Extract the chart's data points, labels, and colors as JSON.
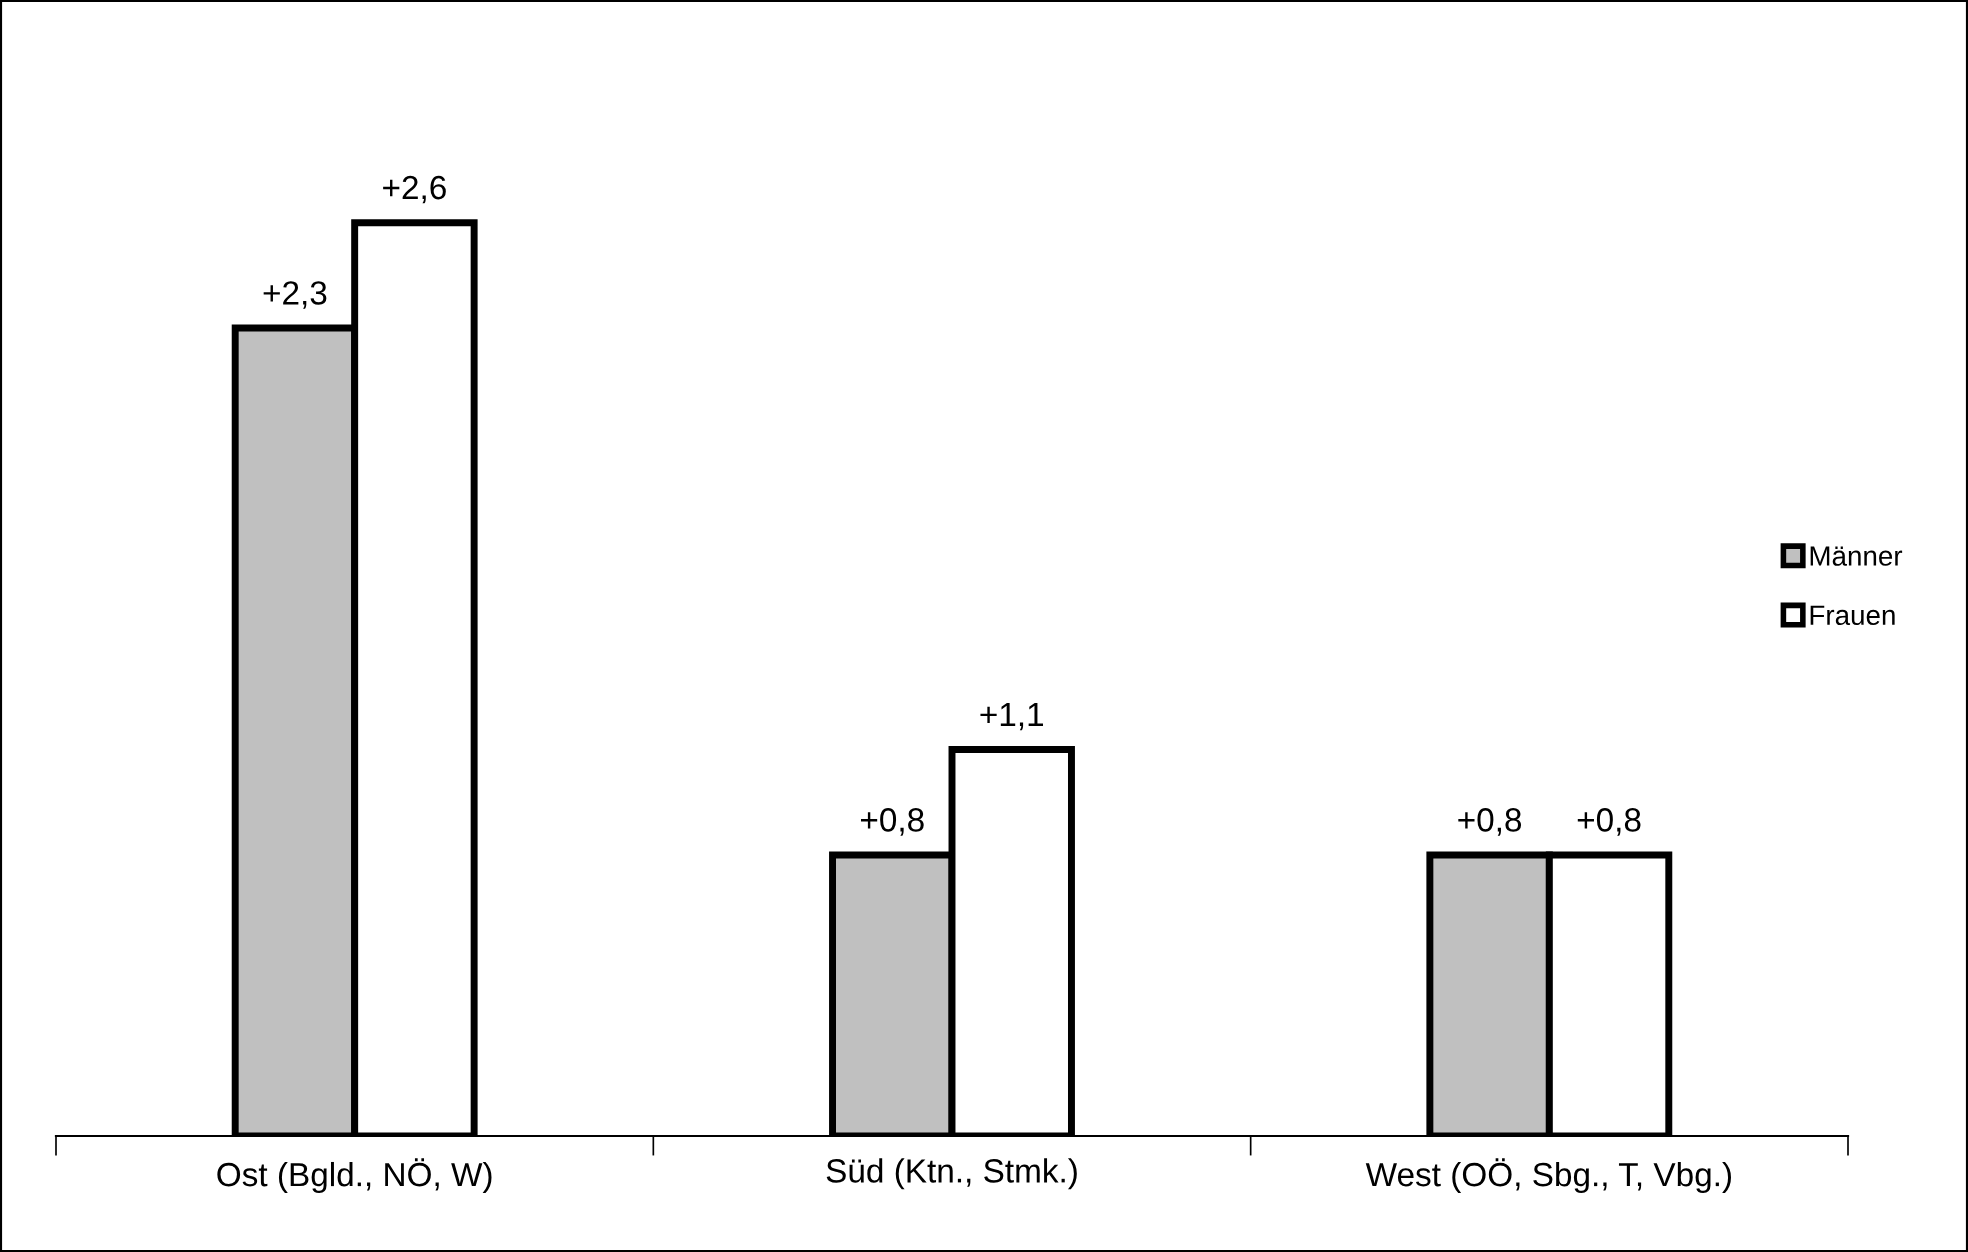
{
  "chart_data": {
    "type": "bar",
    "categories": [
      "Ost (Bgld., NÖ, W)",
      "Süd (Ktn., Stmk.)",
      "West (OÖ, Sbg., T, Vbg.)"
    ],
    "series": [
      {
        "name": "Männer",
        "color": "#c0c0c0",
        "values": [
          2.3,
          0.8,
          0.8
        ],
        "value_labels": [
          "+2,3",
          "+0,8",
          "+0,8"
        ]
      },
      {
        "name": "Frauen",
        "color": "#ffffff",
        "values": [
          2.6,
          1.1,
          0.8
        ],
        "value_labels": [
          "+2,6",
          "+1,1",
          "+0,8"
        ]
      }
    ],
    "legend": "right",
    "grid": false
  }
}
